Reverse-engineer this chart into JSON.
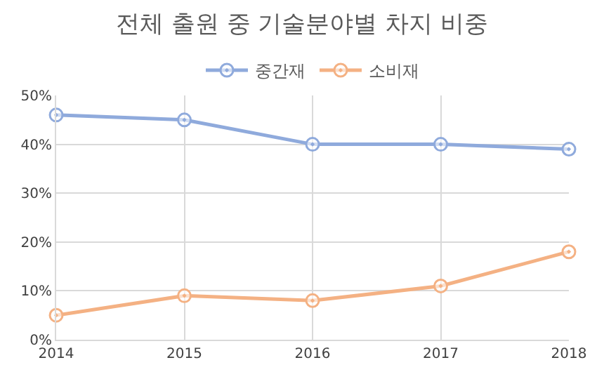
{
  "chart_data": {
    "type": "line",
    "title": "전체 출원 중 기술분야별 차지 비중",
    "x": [
      2014,
      2015,
      2016,
      2017,
      2018
    ],
    "series": [
      {
        "name": "중간재",
        "color": "#8faadc",
        "values": [
          46,
          45,
          40,
          40,
          39
        ]
      },
      {
        "name": "소비재",
        "color": "#f4b183",
        "values": [
          5,
          9,
          8,
          11,
          18
        ]
      }
    ],
    "xlim": [
      2014,
      2018
    ],
    "xticks": [
      2014,
      2015,
      2016,
      2017,
      2018
    ],
    "ylim": [
      0,
      50
    ],
    "yticks": [
      {
        "value": 0,
        "label": "0%"
      },
      {
        "value": 10,
        "label": "10%"
      },
      {
        "value": 20,
        "label": "20%"
      },
      {
        "value": 30,
        "label": "30%"
      },
      {
        "value": 40,
        "label": "40%"
      },
      {
        "value": 50,
        "label": "50%"
      }
    ],
    "grid": true,
    "legend": "top",
    "marker": "circle",
    "line_style": "solid"
  }
}
